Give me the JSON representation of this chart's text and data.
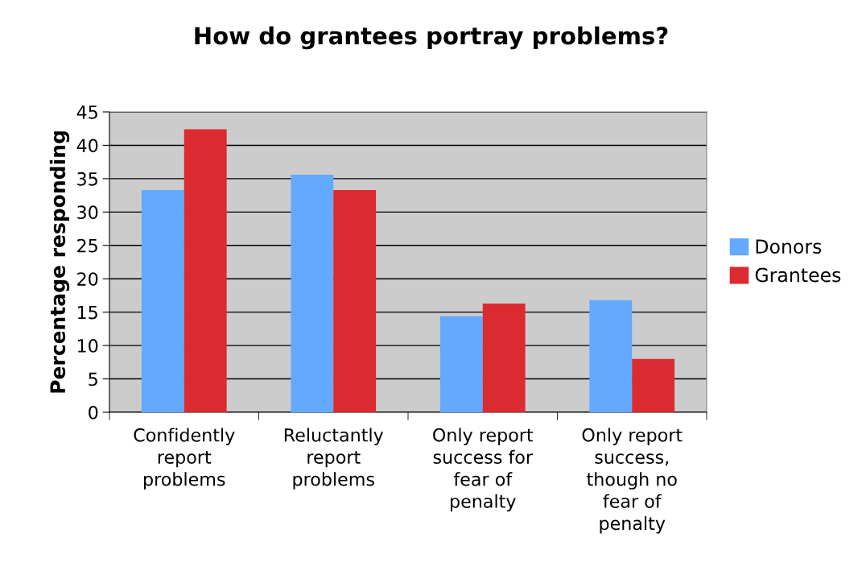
{
  "chart_data": {
    "type": "bar",
    "title": "How do grantees portray problems?",
    "ylabel": "Percentage responding",
    "categories": [
      "Confidently\nreport\nproblems",
      "Reluctantly\nreport\nproblems",
      "Only report\nsuccess for\nfear of\npenalty",
      "Only report\nsuccess,\nthough no\nfear of\npenalty"
    ],
    "series": [
      {
        "name": "Donors",
        "color": "#63a9ff",
        "values": [
          33.3,
          35.6,
          14.4,
          16.8
        ]
      },
      {
        "name": "Grantees",
        "color": "#dc2b30",
        "values": [
          42.4,
          33.3,
          16.3,
          8.0
        ]
      }
    ],
    "ylim": [
      0,
      45
    ],
    "yticks": [
      0,
      5,
      10,
      15,
      20,
      25,
      30,
      35,
      40,
      45
    ],
    "grid": "y",
    "legend": "right"
  }
}
